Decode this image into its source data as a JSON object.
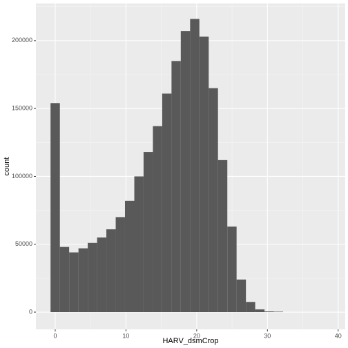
{
  "chart_data": {
    "type": "histogram",
    "x_label": "HARV_dsmCrop",
    "y_label": "count",
    "bins": [
      -0.66,
      0.66,
      1.97,
      3.29,
      4.6,
      5.92,
      7.23,
      8.55,
      9.86,
      11.18,
      12.49,
      13.81,
      15.12,
      16.44,
      17.75,
      19.07,
      20.38,
      21.7,
      23.01,
      24.33,
      25.64,
      26.96,
      28.27,
      29.59,
      30.9,
      32.22,
      33.53,
      34.85,
      36.16,
      37.48,
      38.79
    ],
    "values": [
      154000,
      48000,
      44000,
      47000,
      51000,
      55000,
      61000,
      70000,
      82000,
      100000,
      118000,
      137000,
      161000,
      185000,
      207000,
      216000,
      203000,
      165000,
      112000,
      63000,
      24000,
      7500,
      2000,
      500,
      300,
      0,
      0,
      0,
      0,
      0
    ],
    "color": "#595959",
    "xlim": [
      -2.73,
      41.0
    ],
    "ylim": [
      -12700,
      227400
    ],
    "xticks": [
      0,
      10,
      20,
      30,
      40
    ],
    "yticks": [
      0,
      50000,
      100000,
      150000,
      200000
    ],
    "x_minor_ticks": [
      5,
      15,
      25,
      35
    ],
    "y_minor_ticks": [
      25000,
      75000,
      125000,
      175000,
      225000
    ],
    "grid": true
  }
}
